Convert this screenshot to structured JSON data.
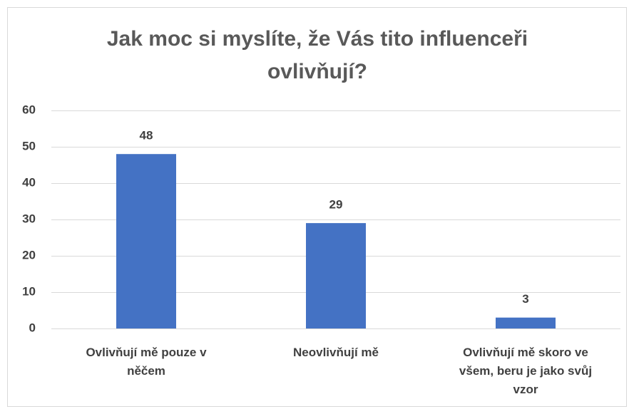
{
  "chart_data": {
    "type": "bar",
    "title": "Jak moc si myslíte, že Vás tito influenceři ovlivňují?",
    "categories": [
      "Ovlivňují mě pouze v něčem",
      "Neovlivňují mě",
      "Ovlivňují mě skoro ve všem, beru je jako svůj vzor"
    ],
    "values": [
      48,
      29,
      3
    ],
    "color": "#4472c4",
    "ylim": [
      0,
      60
    ],
    "yticks": [
      0,
      10,
      20,
      30,
      40,
      50,
      60
    ],
    "grid": true
  }
}
